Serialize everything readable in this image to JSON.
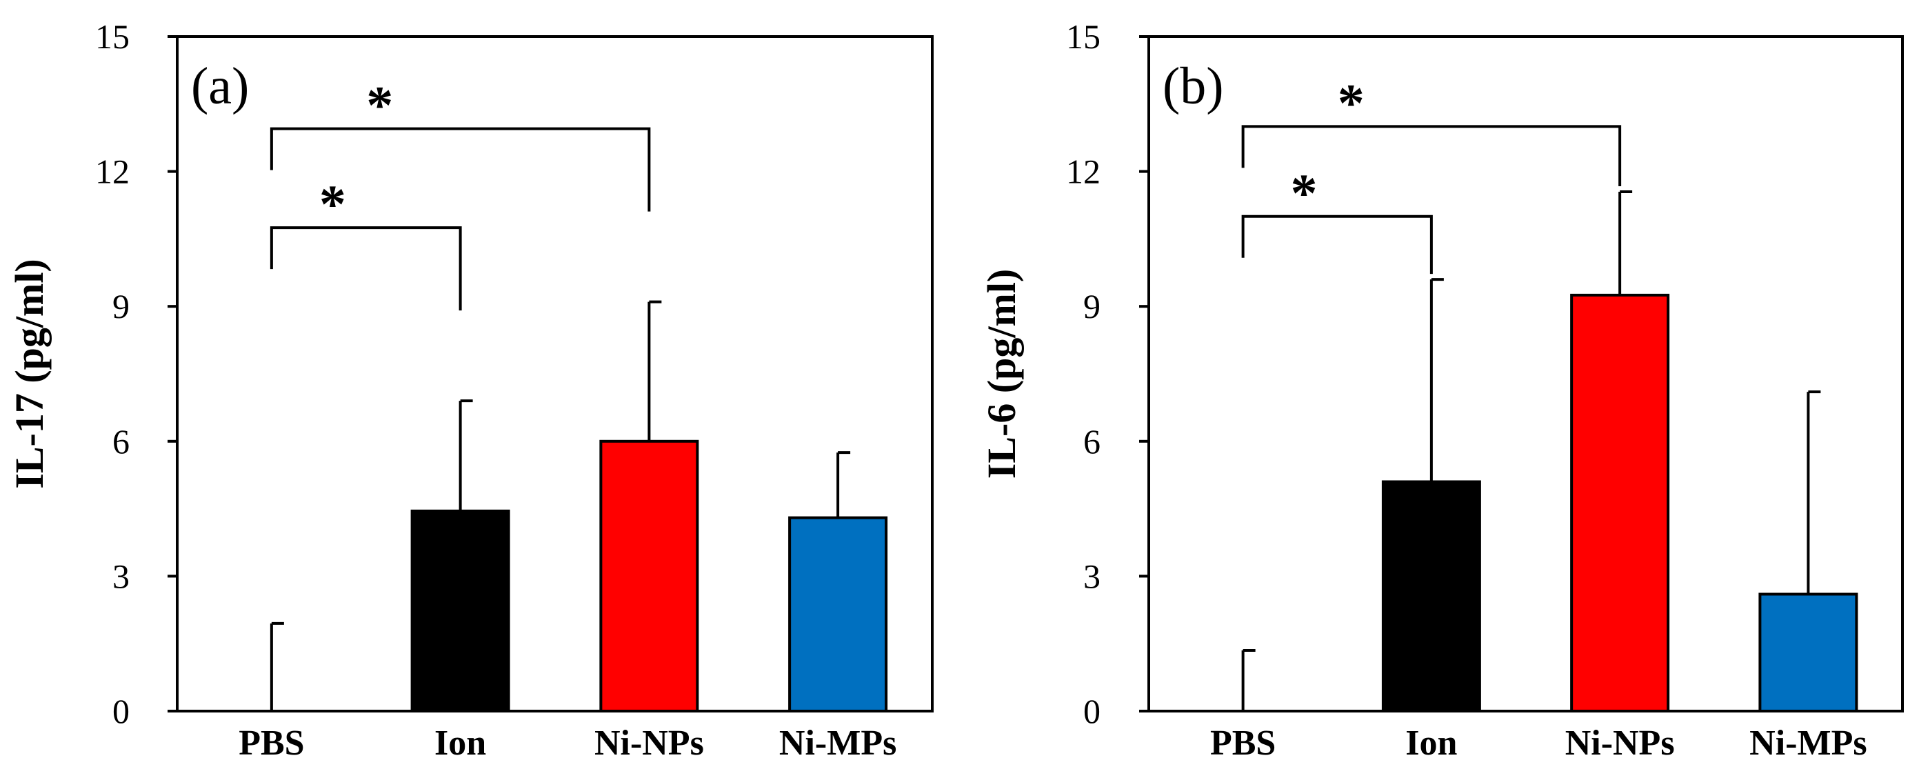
{
  "chart_data": [
    {
      "type": "bar",
      "panel_label": "(a)",
      "ylabel": "IL-17 (pg/ml)",
      "xlabel": "",
      "ylim": [
        0,
        15
      ],
      "yticks": [
        "0",
        "3",
        "6",
        "9",
        "12",
        "15"
      ],
      "categories": [
        "PBS",
        "Ion",
        "Ni-NPs",
        "Ni-MPs"
      ],
      "values": [
        0,
        4.45,
        6.0,
        4.3
      ],
      "errors": [
        1.95,
        2.45,
        3.1,
        1.45
      ],
      "colors": [
        "#ffffff",
        "#000000",
        "#ff0000",
        "#0070c0"
      ],
      "significance": [
        {
          "from": "PBS",
          "to": "Ion",
          "level": 10.75,
          "label": "*"
        },
        {
          "from": "PBS",
          "to": "Ni-NPs",
          "level": 12.95,
          "label": "*"
        }
      ]
    },
    {
      "type": "bar",
      "panel_label": "(b)",
      "ylabel": "IL-6 (pg/ml)",
      "xlabel": "",
      "ylim": [
        0,
        15
      ],
      "yticks": [
        "0",
        "3",
        "6",
        "9",
        "12",
        "15"
      ],
      "categories": [
        "PBS",
        "Ion",
        "Ni-NPs",
        "Ni-MPs"
      ],
      "values": [
        0,
        5.1,
        9.25,
        2.6
      ],
      "errors": [
        1.35,
        4.5,
        2.3,
        4.5
      ],
      "colors": [
        "#ffffff",
        "#000000",
        "#ff0000",
        "#0070c0"
      ],
      "significance": [
        {
          "from": "PBS",
          "to": "Ion",
          "level": 11.0,
          "label": "*"
        },
        {
          "from": "PBS",
          "to": "Ni-NPs",
          "level": 13.0,
          "label": "*"
        }
      ]
    }
  ]
}
